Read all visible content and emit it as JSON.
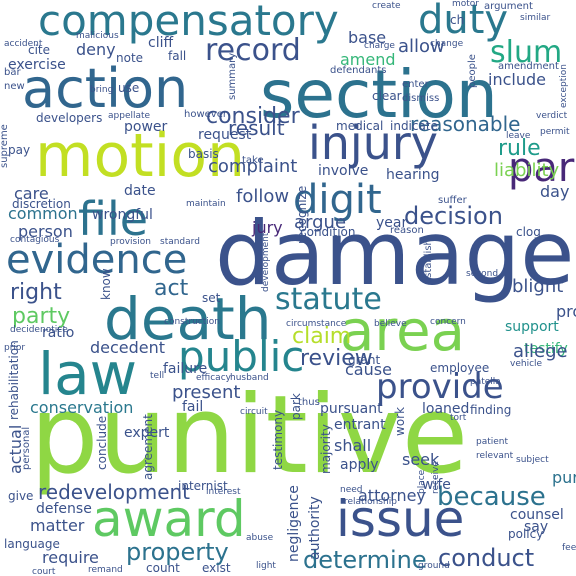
{
  "words": [
    {
      "text": "punitive",
      "color": "#8fd744"
    },
    {
      "text": "damage",
      "color": "#3b528b"
    },
    {
      "text": "section",
      "color": "#2c728e"
    },
    {
      "text": "motion",
      "color": "#c2df23"
    },
    {
      "text": "action",
      "color": "#31668e"
    },
    {
      "text": "compensatory",
      "color": "#2a788e"
    },
    {
      "text": "award",
      "color": "#5ec962"
    },
    {
      "text": "issue",
      "color": "#3b528b"
    },
    {
      "text": "law",
      "color": "#25858e"
    },
    {
      "text": "death",
      "color": "#2a788e"
    },
    {
      "text": "injury",
      "color": "#3b528b"
    },
    {
      "text": "area",
      "color": "#7ad151"
    },
    {
      "text": "file",
      "color": "#2c728e"
    },
    {
      "text": "evidence",
      "color": "#31668e"
    },
    {
      "text": "public",
      "color": "#25858e"
    },
    {
      "text": "digit",
      "color": "#31668e"
    },
    {
      "text": "provide",
      "color": "#3b528b"
    },
    {
      "text": "statute",
      "color": "#2a788e"
    },
    {
      "text": "duty",
      "color": "#2a788e"
    },
    {
      "text": "record",
      "color": "#3b528b"
    },
    {
      "text": "par",
      "color": "#482878"
    },
    {
      "text": "slum",
      "color": "#22a884"
    },
    {
      "text": "property",
      "color": "#2c728e"
    },
    {
      "text": "because",
      "color": "#2c728e"
    },
    {
      "text": "conduct",
      "color": "#3b528b"
    },
    {
      "text": "determine",
      "color": "#2c728e"
    },
    {
      "text": "decision",
      "color": "#3b528b"
    },
    {
      "text": "redevelopment",
      "color": "#3b528b"
    },
    {
      "text": "review",
      "color": "#3b528b"
    },
    {
      "text": "claim",
      "color": "#b5de2b"
    },
    {
      "text": "act",
      "color": "#31668e"
    },
    {
      "text": "party",
      "color": "#5ec962"
    },
    {
      "text": "right",
      "color": "#3b528b"
    },
    {
      "text": "consider",
      "color": "#3b528b"
    },
    {
      "text": "result",
      "color": "#3b528b"
    },
    {
      "text": "reasonable",
      "color": "#31668e"
    },
    {
      "text": "rule",
      "color": "#1e9b8a"
    },
    {
      "text": "liability",
      "color": "#7ad151"
    },
    {
      "text": "include",
      "color": "#3b528b"
    },
    {
      "text": "allow",
      "color": "#3b528b"
    },
    {
      "text": "amend",
      "color": "#35b779"
    },
    {
      "text": "base",
      "color": "#3b528b"
    },
    {
      "text": "deny",
      "color": "#3b528b"
    },
    {
      "text": "exercise",
      "color": "#3b528b"
    },
    {
      "text": "cliff",
      "color": "#3b528b"
    },
    {
      "text": "complaint",
      "color": "#3b528b"
    },
    {
      "text": "common",
      "color": "#2c728e"
    },
    {
      "text": "care",
      "color": "#3b528b"
    },
    {
      "text": "follow",
      "color": "#3b528b"
    },
    {
      "text": "argue",
      "color": "#3b528b"
    },
    {
      "text": "jury",
      "color": "#482878"
    },
    {
      "text": "person",
      "color": "#3b528b"
    },
    {
      "text": "day",
      "color": "#3b528b"
    },
    {
      "text": "year",
      "color": "#3b528b"
    },
    {
      "text": "blight",
      "color": "#3b528b"
    },
    {
      "text": "proceeding",
      "color": "#3b528b"
    },
    {
      "text": "testify",
      "color": "#35b779"
    },
    {
      "text": "support",
      "color": "#21918c"
    },
    {
      "text": "allege",
      "color": "#3b528b"
    },
    {
      "text": "cause",
      "color": "#3b528b"
    },
    {
      "text": "decedent",
      "color": "#3b528b"
    },
    {
      "text": "present",
      "color": "#3b528b"
    },
    {
      "text": "conservation",
      "color": "#2a788e"
    },
    {
      "text": "loaned",
      "color": "#3b528b"
    },
    {
      "text": "purpose",
      "color": "#2c728e"
    },
    {
      "text": "seek",
      "color": "#3b528b"
    },
    {
      "text": "shall",
      "color": "#3b528b"
    },
    {
      "text": "attorney",
      "color": "#3b528b"
    },
    {
      "text": "matter",
      "color": "#3b528b"
    },
    {
      "text": "require",
      "color": "#3b528b"
    },
    {
      "text": "defense",
      "color": "#3b528b"
    },
    {
      "text": "say",
      "color": "#3b528b"
    },
    {
      "text": "counsel",
      "color": "#3b528b"
    },
    {
      "text": "policy",
      "color": "#3b528b"
    },
    {
      "text": "actual",
      "color": "#3b528b"
    },
    {
      "text": "fail",
      "color": "#3b528b"
    },
    {
      "text": "expert",
      "color": "#3b528b"
    },
    {
      "text": "conclude",
      "color": "#3b528b"
    },
    {
      "text": "wife",
      "color": "#3b528b"
    },
    {
      "text": "apply",
      "color": "#3b528b"
    },
    {
      "text": "finding",
      "color": "#3b528b"
    },
    {
      "text": "pursuant",
      "color": "#3b528b"
    },
    {
      "text": "entrant",
      "color": "#3b528b"
    },
    {
      "text": "negligence",
      "color": "#3b528b"
    },
    {
      "text": "authority",
      "color": "#3b528b"
    },
    {
      "text": "agreement",
      "color": "#3b528b"
    },
    {
      "text": "rehabilitation",
      "color": "#3b528b"
    },
    {
      "text": "internist",
      "color": "#3b528b"
    },
    {
      "text": "hearing",
      "color": "#3b528b"
    },
    {
      "text": "involve",
      "color": "#3b528b"
    },
    {
      "text": "condition",
      "color": "#3b528b"
    },
    {
      "text": "grant",
      "color": "#3b528b"
    },
    {
      "text": "ratio",
      "color": "#3b528b"
    },
    {
      "text": "failure",
      "color": "#3b528b"
    },
    {
      "text": "date",
      "color": "#3b528b"
    },
    {
      "text": "wrongful",
      "color": "#3b528b"
    },
    {
      "text": "discretion",
      "color": "#3b528b"
    },
    {
      "text": "request",
      "color": "#3b528b"
    },
    {
      "text": "medical",
      "color": "#3b528b"
    },
    {
      "text": "indicate",
      "color": "#3b528b"
    },
    {
      "text": "clear",
      "color": "#3b528b"
    },
    {
      "text": "power",
      "color": "#3b528b"
    },
    {
      "text": "note",
      "color": "#3b528b"
    },
    {
      "text": "fall",
      "color": "#3b528b"
    },
    {
      "text": "basis",
      "color": "#3b528b"
    },
    {
      "text": "recognize",
      "color": "#3b528b"
    },
    {
      "text": "majority",
      "color": "#3b528b"
    },
    {
      "text": "testimony",
      "color": "#3b528b"
    },
    {
      "text": "park",
      "color": "#3b528b"
    },
    {
      "text": "work",
      "color": "#3b528b"
    },
    {
      "text": "give",
      "color": "#3b528b"
    },
    {
      "text": "count",
      "color": "#3b528b"
    },
    {
      "text": "exist",
      "color": "#3b528b"
    },
    {
      "text": "language",
      "color": "#3b528b"
    },
    {
      "text": "ground",
      "color": "#3b528b"
    },
    {
      "text": "light",
      "color": "#3b528b"
    },
    {
      "text": "set",
      "color": "#3b528b"
    },
    {
      "text": "know",
      "color": "#3b528b"
    },
    {
      "text": "employee",
      "color": "#3b528b"
    },
    {
      "text": "clog",
      "color": "#3b528b"
    },
    {
      "text": "reason",
      "color": "#3b528b"
    },
    {
      "text": "suffer",
      "color": "#3b528b"
    },
    {
      "text": "second",
      "color": "#3b528b"
    },
    {
      "text": "concern",
      "color": "#3b528b"
    },
    {
      "text": "however",
      "color": "#3b528b"
    },
    {
      "text": "summary",
      "color": "#3b528b"
    },
    {
      "text": "defendants",
      "color": "#3b528b"
    },
    {
      "text": "enter",
      "color": "#3b528b"
    },
    {
      "text": "dismiss",
      "color": "#3b528b"
    },
    {
      "text": "people",
      "color": "#3b528b"
    },
    {
      "text": "amendment",
      "color": "#3b528b"
    },
    {
      "text": "motor",
      "color": "#3b528b"
    },
    {
      "text": "argument",
      "color": "#3b528b"
    },
    {
      "text": "similar",
      "color": "#3b528b"
    },
    {
      "text": "charge",
      "color": "#3b528b"
    },
    {
      "text": "change",
      "color": "#3b528b"
    },
    {
      "text": "create",
      "color": "#3b528b"
    },
    {
      "text": "accident",
      "color": "#3b528b"
    },
    {
      "text": "malicious",
      "color": "#3b528b"
    },
    {
      "text": "cite",
      "color": "#3b528b"
    },
    {
      "text": "new",
      "color": "#3b528b"
    },
    {
      "text": "bar",
      "color": "#3b528b"
    },
    {
      "text": "bring",
      "color": "#3b528b"
    },
    {
      "text": "use",
      "color": "#3b528b"
    },
    {
      "text": "developers",
      "color": "#3b528b"
    },
    {
      "text": "appellate",
      "color": "#3b528b"
    },
    {
      "text": "pay",
      "color": "#3b528b"
    },
    {
      "text": "supreme",
      "color": "#3b528b"
    },
    {
      "text": "take",
      "color": "#3b528b"
    },
    {
      "text": "construction",
      "color": "#3b528b"
    },
    {
      "text": "circuit",
      "color": "#3b528b"
    },
    {
      "text": "thus",
      "color": "#3b528b"
    },
    {
      "text": "abuse",
      "color": "#3b528b"
    },
    {
      "text": "relationship",
      "color": "#3b528b"
    },
    {
      "text": "interest",
      "color": "#3b528b"
    },
    {
      "text": "need",
      "color": "#3b528b"
    },
    {
      "text": "fee",
      "color": "#3b528b"
    },
    {
      "text": "remand",
      "color": "#3b528b"
    },
    {
      "text": "court",
      "color": "#3b528b"
    },
    {
      "text": "tort",
      "color": "#3b528b"
    },
    {
      "text": "establish",
      "color": "#3b528b"
    },
    {
      "text": "ch",
      "color": "#3b528b"
    },
    {
      "text": "contagious",
      "color": "#3b528b"
    },
    {
      "text": "standard",
      "color": "#3b528b"
    },
    {
      "text": "provision",
      "color": "#3b528b"
    },
    {
      "text": "circumstance",
      "color": "#3b528b"
    },
    {
      "text": "believe",
      "color": "#3b528b"
    },
    {
      "text": "efficacy",
      "color": "#3b528b"
    },
    {
      "text": "husband",
      "color": "#3b528b"
    },
    {
      "text": "patella",
      "color": "#3b528b"
    },
    {
      "text": "decide",
      "color": "#3b528b"
    },
    {
      "text": "notice",
      "color": "#3b528b"
    },
    {
      "text": "verdict",
      "color": "#3b528b"
    },
    {
      "text": "permit",
      "color": "#3b528b"
    },
    {
      "text": "leave",
      "color": "#3b528b"
    },
    {
      "text": "exception",
      "color": "#3b528b"
    },
    {
      "text": "vehicle",
      "color": "#3b528b"
    },
    {
      "text": "subject",
      "color": "#3b528b"
    },
    {
      "text": "patient",
      "color": "#3b528b"
    },
    {
      "text": "relevant",
      "color": "#3b528b"
    },
    {
      "text": "personal",
      "color": "#3b528b"
    },
    {
      "text": "prior",
      "color": "#3b528b"
    },
    {
      "text": "maintain",
      "color": "#3b528b"
    },
    {
      "text": "tell",
      "color": "#3b528b"
    },
    {
      "text": "place",
      "color": "#3b528b"
    },
    {
      "text": "receive",
      "color": "#3b528b"
    },
    {
      "text": "development",
      "color": "#3b528b"
    }
  ]
}
